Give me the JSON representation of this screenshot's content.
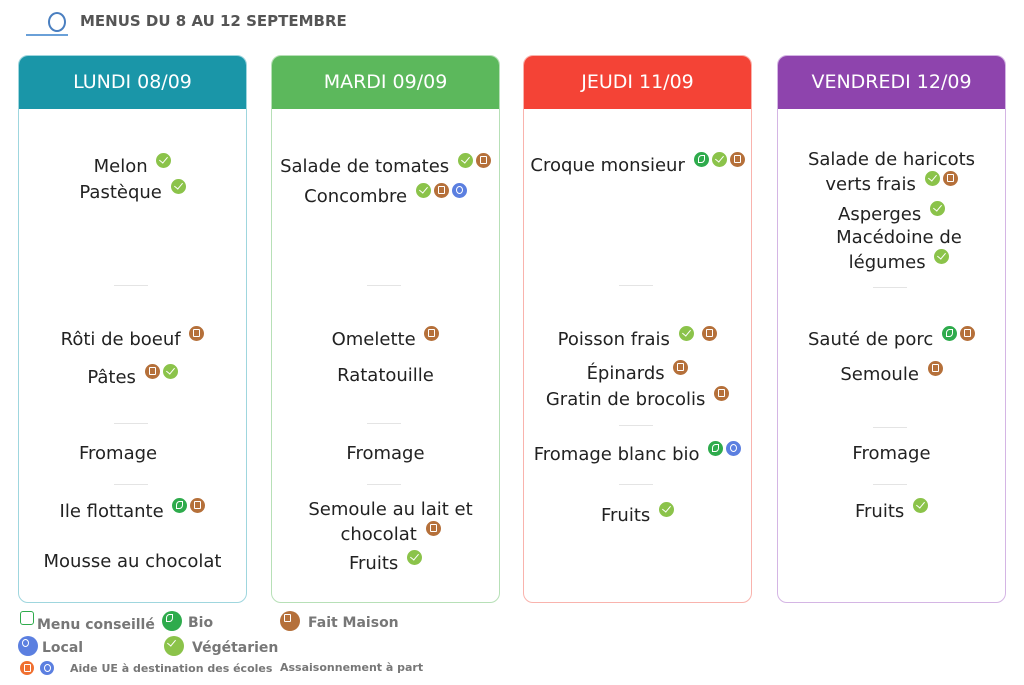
{
  "header": {
    "title": "MENUS DU 8 AU 12 SEPTEMBRE"
  },
  "days": [
    {
      "title": "LUNDI 08/09",
      "items": [
        "Melon",
        "Pastèque",
        "Rôti de boeuf",
        "Pâtes",
        "Fromage",
        "Ile flottante",
        "Mousse au chocolat"
      ]
    },
    {
      "title": "MARDI 09/09",
      "items": [
        "Salade de tomates",
        "Concombre",
        "Omelette",
        "Ratatouille",
        "Fromage",
        "Semoule au lait et chocolat",
        "Fruits"
      ]
    },
    {
      "title": "JEUDI 11/09",
      "items": [
        "Croque monsieur",
        "Poisson frais",
        "Épinards",
        "Gratin de brocolis",
        "Fromage blanc bio",
        "Fruits"
      ]
    },
    {
      "title": "VENDREDI 12/09",
      "items": [
        "Salade de haricots verts frais",
        "Asperges",
        "Macédoine de légumes",
        "Sauté de porc",
        "Semoule",
        "Fromage",
        "Fruits"
      ]
    }
  ],
  "legend": [
    "Menu conseillé",
    "Bio",
    "Fait Maison",
    "Local",
    "Végétarien",
    "Aide UE à destination des écoles",
    "Assaisonnement à part"
  ]
}
